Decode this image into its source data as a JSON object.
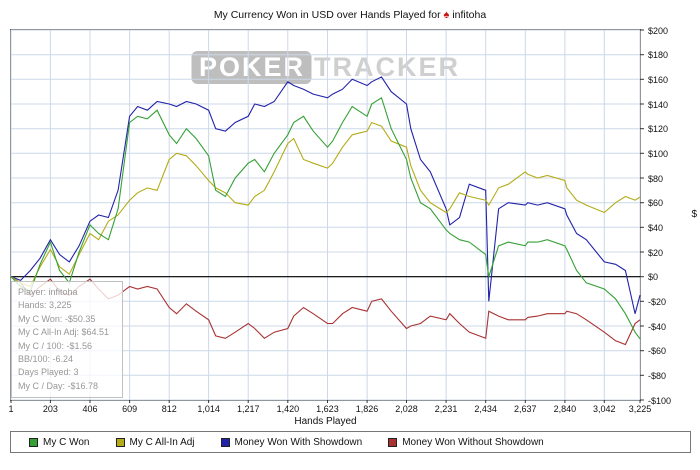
{
  "header": {
    "title_prefix": "My Currency Won in USD over Hands Played for",
    "player": "infitoha",
    "site_icon": "red-spade-icon"
  },
  "watermark": {
    "part1": "POKER",
    "part2": "TRACKER"
  },
  "tooltip": {
    "lines": [
      "Player: infitoha",
      "Hands: 3,225",
      "My C Won: -$50.35",
      "My C All-In Adj: $64.51",
      "My C / 100: -$1.56",
      "BB/100: -6.24",
      "Days Played: 3",
      "My C / Day: -$16.78"
    ]
  },
  "chart_data": {
    "type": "line",
    "title": "My Currency Won in USD over Hands Played for infitoha",
    "xlabel": "Hands Played",
    "ylabel": "$",
    "xlim": [
      1,
      3225
    ],
    "ylim": [
      -100,
      200
    ],
    "grid": true,
    "zero_line": true,
    "grid_color": "#ccd7e8",
    "legend_position": "bottom",
    "x_ticks": {
      "values": [
        1,
        203,
        406,
        609,
        812,
        1014,
        1217,
        1420,
        1623,
        1826,
        2028,
        2231,
        2434,
        2637,
        2840,
        3042,
        3225
      ],
      "labels": [
        "1",
        "203",
        "406",
        "609",
        "812",
        "1,014",
        "1,217",
        "1,420",
        "1,623",
        "1,826",
        "2,028",
        "2,231",
        "2,434",
        "2,637",
        "2,840",
        "3,042",
        "3,225"
      ]
    },
    "y_ticks": {
      "values": [
        200,
        180,
        160,
        140,
        120,
        100,
        80,
        60,
        40,
        20,
        0,
        -20,
        -40,
        -60,
        -80,
        -100
      ],
      "labels": [
        "$200",
        "$180",
        "$160",
        "$140",
        "$120",
        "$100",
        "$80",
        "$60",
        "$40",
        "$20",
        "$0",
        "-$20",
        "-$40",
        "-$60",
        "-$80",
        "-$100"
      ]
    },
    "x": [
      1,
      50,
      100,
      150,
      203,
      250,
      300,
      350,
      406,
      450,
      500,
      550,
      609,
      650,
      700,
      750,
      812,
      850,
      900,
      950,
      1014,
      1050,
      1100,
      1150,
      1217,
      1250,
      1300,
      1350,
      1420,
      1450,
      1500,
      1550,
      1623,
      1650,
      1700,
      1750,
      1826,
      1850,
      1900,
      1950,
      2028,
      2050,
      2100,
      2150,
      2231,
      2250,
      2300,
      2350,
      2434,
      2450,
      2500,
      2550,
      2637,
      2650,
      2700,
      2750,
      2840,
      2850,
      2900,
      2950,
      3042,
      3100,
      3150,
      3200,
      3225
    ],
    "series": [
      {
        "name": "My C Won",
        "color": "#35a035",
        "values": [
          0,
          -8,
          -12,
          10,
          28,
          5,
          -5,
          20,
          42,
          35,
          30,
          55,
          125,
          130,
          128,
          135,
          115,
          108,
          120,
          112,
          98,
          70,
          65,
          80,
          92,
          95,
          85,
          100,
          115,
          125,
          130,
          118,
          105,
          110,
          125,
          138,
          130,
          140,
          145,
          120,
          95,
          80,
          60,
          55,
          38,
          35,
          30,
          28,
          18,
          0,
          25,
          28,
          25,
          28,
          28,
          30,
          25,
          22,
          5,
          -5,
          -10,
          -18,
          -30,
          -45,
          -50.35
        ]
      },
      {
        "name": "My C All-In Adj",
        "color": "#b3ac17",
        "values": [
          0,
          -5,
          -8,
          8,
          22,
          8,
          2,
          18,
          35,
          30,
          45,
          50,
          62,
          68,
          72,
          70,
          95,
          100,
          98,
          90,
          78,
          72,
          68,
          60,
          58,
          65,
          70,
          85,
          108,
          112,
          95,
          92,
          88,
          92,
          105,
          115,
          118,
          125,
          122,
          110,
          105,
          90,
          70,
          60,
          52,
          55,
          68,
          65,
          62,
          58,
          72,
          75,
          85,
          83,
          80,
          82,
          78,
          72,
          62,
          58,
          52,
          60,
          65,
          62,
          64.51
        ]
      },
      {
        "name": "Money Won With Showdown",
        "color": "#2222aa",
        "values": [
          0,
          -3,
          5,
          15,
          30,
          18,
          12,
          25,
          45,
          50,
          48,
          70,
          130,
          138,
          135,
          142,
          140,
          138,
          142,
          140,
          135,
          120,
          118,
          125,
          130,
          140,
          138,
          142,
          158,
          155,
          152,
          148,
          145,
          148,
          152,
          160,
          155,
          158,
          162,
          150,
          140,
          120,
          95,
          85,
          55,
          42,
          48,
          75,
          70,
          -20,
          55,
          60,
          58,
          60,
          58,
          60,
          55,
          50,
          35,
          30,
          12,
          10,
          5,
          -30,
          -15
        ]
      },
      {
        "name": "Money Won Without Showdown",
        "color": "#a83232",
        "values": [
          0,
          -5,
          -15,
          -8,
          -2,
          -12,
          -15,
          -8,
          -2,
          -10,
          -18,
          -15,
          -8,
          -10,
          -8,
          -10,
          -25,
          -30,
          -22,
          -28,
          -35,
          -48,
          -50,
          -45,
          -38,
          -42,
          -50,
          -45,
          -42,
          -32,
          -25,
          -30,
          -38,
          -38,
          -30,
          -25,
          -28,
          -20,
          -18,
          -28,
          -42,
          -40,
          -38,
          -32,
          -35,
          -30,
          -38,
          -45,
          -50,
          -28,
          -32,
          -35,
          -35,
          -33,
          -32,
          -30,
          -30,
          -28,
          -30,
          -35,
          -45,
          -52,
          -55,
          -38,
          -35
        ]
      }
    ]
  }
}
